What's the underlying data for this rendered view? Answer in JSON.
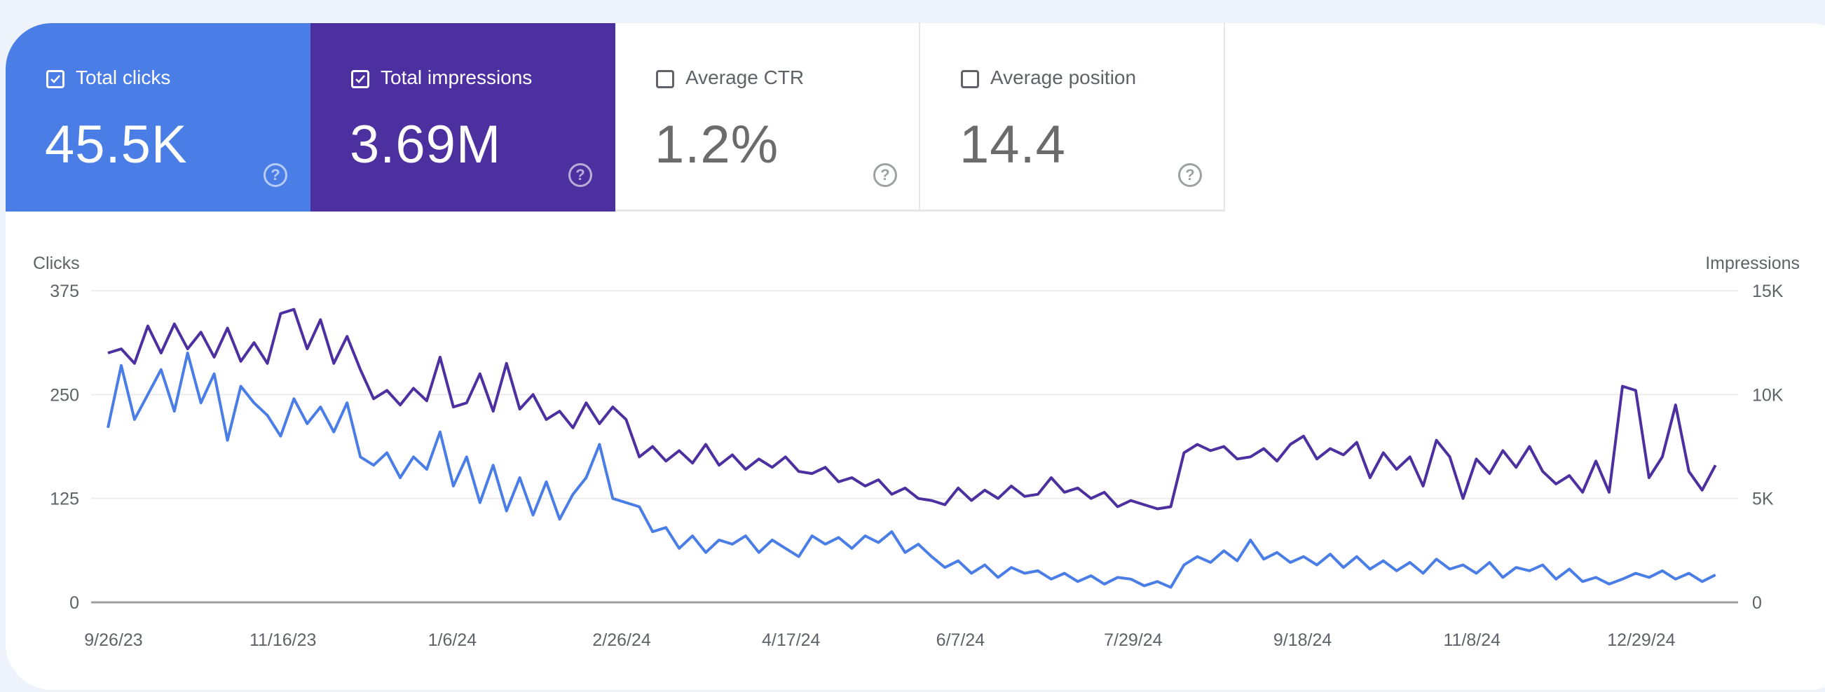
{
  "colors": {
    "clicks": "#4a7ee6",
    "impressions": "#4d30a0",
    "background": "#eef2fa"
  },
  "tiles": [
    {
      "label": "Total clicks",
      "value": "45.5K",
      "checked": true,
      "icon": "help-circle-icon"
    },
    {
      "label": "Total impressions",
      "value": "3.69M",
      "checked": true,
      "icon": "help-circle-icon"
    },
    {
      "label": "Average CTR",
      "value": "1.2%",
      "checked": false,
      "icon": "help-circle-icon"
    },
    {
      "label": "Average position",
      "value": "14.4",
      "checked": false,
      "icon": "help-circle-icon"
    }
  ],
  "chart_data": {
    "type": "line",
    "ylabel_left": "Clicks",
    "ylabel_right": "Impressions",
    "ylim_left": [
      0,
      375
    ],
    "ylim_right": [
      0,
      15000
    ],
    "yticks_left": [
      "0",
      "125",
      "250",
      "375"
    ],
    "yticks_right": [
      "0",
      "5K",
      "10K",
      "15K"
    ],
    "xticks": [
      "9/26/23",
      "11/16/23",
      "1/6/24",
      "2/26/24",
      "4/17/24",
      "6/7/24",
      "7/29/24",
      "9/18/24",
      "11/8/24",
      "12/29/24"
    ],
    "grid": true,
    "x": [
      "9/26/23",
      "9/30/23",
      "10/4/23",
      "10/8/23",
      "10/12/23",
      "10/16/23",
      "10/20/23",
      "10/24/23",
      "10/28/23",
      "11/1/23",
      "11/5/23",
      "11/9/23",
      "11/13/23",
      "11/17/23",
      "11/21/23",
      "11/25/23",
      "11/29/23",
      "12/3/23",
      "12/7/23",
      "12/11/23",
      "12/15/23",
      "12/19/23",
      "12/23/23",
      "12/27/23",
      "12/31/23",
      "1/4/24",
      "1/8/24",
      "1/12/24",
      "1/16/24",
      "1/20/24",
      "1/24/24",
      "1/28/24",
      "2/1/24",
      "2/5/24",
      "2/9/24",
      "2/13/24",
      "2/17/24",
      "2/21/24",
      "2/25/24",
      "2/29/24",
      "3/4/24",
      "3/8/24",
      "3/12/24",
      "3/16/24",
      "3/20/24",
      "3/24/24",
      "3/28/24",
      "4/1/24",
      "4/5/24",
      "4/9/24",
      "4/13/24",
      "4/17/24",
      "4/21/24",
      "4/25/24",
      "4/29/24",
      "5/3/24",
      "5/7/24",
      "5/11/24",
      "5/15/24",
      "5/19/24",
      "5/23/24",
      "5/27/24",
      "5/31/24",
      "6/4/24",
      "6/8/24",
      "6/12/24",
      "6/16/24",
      "6/20/24",
      "6/24/24",
      "6/28/24",
      "7/2/24",
      "7/6/24",
      "7/10/24",
      "7/14/24",
      "7/18/24",
      "7/22/24",
      "7/26/24",
      "7/30/24",
      "8/3/24",
      "8/7/24",
      "8/11/24",
      "8/15/24",
      "8/19/24",
      "8/23/24",
      "8/27/24",
      "8/31/24",
      "9/4/24",
      "9/8/24",
      "9/12/24",
      "9/16/24",
      "9/20/24",
      "9/24/24",
      "9/28/24",
      "10/2/24",
      "10/6/24",
      "10/10/24",
      "10/14/24",
      "10/18/24",
      "10/22/24",
      "10/26/24",
      "10/30/24",
      "11/3/24",
      "11/7/24",
      "11/11/24",
      "11/15/24",
      "11/19/24",
      "11/23/24",
      "11/27/24",
      "12/1/24",
      "12/5/24",
      "12/9/24",
      "12/13/24",
      "12/17/24",
      "12/21/24",
      "12/25/24",
      "12/29/24",
      "1/2/25",
      "1/6/25",
      "1/10/25",
      "1/14/25",
      "1/18/25",
      "1/22/25"
    ],
    "series": [
      {
        "name": "Clicks",
        "axis": "left",
        "color": "#4a7ee6",
        "values": [
          210,
          285,
          220,
          250,
          280,
          230,
          300,
          240,
          275,
          195,
          260,
          240,
          225,
          200,
          245,
          215,
          235,
          205,
          240,
          175,
          165,
          180,
          150,
          175,
          160,
          205,
          140,
          175,
          120,
          165,
          110,
          150,
          105,
          145,
          100,
          130,
          150,
          190,
          125,
          120,
          115,
          85,
          90,
          65,
          80,
          60,
          75,
          70,
          80,
          60,
          75,
          65,
          55,
          80,
          70,
          78,
          65,
          80,
          72,
          85,
          60,
          70,
          55,
          42,
          50,
          35,
          45,
          30,
          42,
          35,
          38,
          28,
          35,
          25,
          32,
          22,
          30,
          28,
          20,
          25,
          18,
          45,
          55,
          48,
          62,
          50,
          75,
          52,
          60,
          48,
          55,
          45,
          58,
          42,
          55,
          40,
          50,
          38,
          48,
          35,
          52,
          40,
          45,
          35,
          48,
          30,
          42,
          38,
          45,
          28,
          40,
          25,
          30,
          22,
          28,
          35,
          30,
          38,
          28,
          35,
          25,
          33
        ]
      },
      {
        "name": "Impressions",
        "axis": "right",
        "color": "#4d30a0",
        "values": [
          12000,
          12200,
          11500,
          13300,
          12000,
          13400,
          12200,
          13000,
          11800,
          13200,
          11600,
          12500,
          11500,
          13900,
          14100,
          12200,
          13600,
          11500,
          12800,
          11200,
          9800,
          10200,
          9500,
          10300,
          9700,
          11800,
          9400,
          9600,
          11000,
          9200,
          11500,
          9300,
          10000,
          8800,
          9200,
          8400,
          9600,
          8600,
          9400,
          8800,
          7000,
          7500,
          6800,
          7300,
          6700,
          7600,
          6600,
          7100,
          6400,
          6900,
          6500,
          7000,
          6300,
          6200,
          6500,
          5800,
          6000,
          5600,
          5900,
          5200,
          5500,
          5000,
          4900,
          4700,
          5500,
          4900,
          5400,
          5000,
          5600,
          5100,
          5200,
          6000,
          5300,
          5500,
          5000,
          5300,
          4600,
          4900,
          4700,
          4500,
          4600,
          7200,
          7600,
          7300,
          7500,
          6900,
          7000,
          7400,
          6800,
          7600,
          8000,
          6900,
          7400,
          7100,
          7700,
          6000,
          7200,
          6400,
          7000,
          5600,
          7800,
          7000,
          5000,
          6900,
          6200,
          7300,
          6500,
          7500,
          6300,
          5700,
          6100,
          5300,
          6800,
          5300,
          10400,
          10200,
          6000,
          7000,
          9500,
          6300,
          5400,
          6600
        ]
      }
    ]
  }
}
